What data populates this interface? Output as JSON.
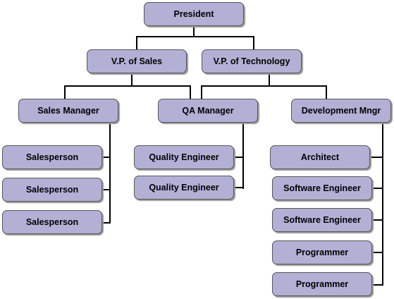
{
  "org_chart": {
    "president": "President",
    "vp_sales": "V.P. of Sales",
    "vp_technology": "V.P. of Technology",
    "sales_manager": "Sales Manager",
    "qa_manager": "QA Manager",
    "development_manager": "Development Mngr",
    "sales_team": [
      "Salesperson",
      "Salesperson",
      "Salesperson"
    ],
    "qa_team": [
      "Quality Engineer",
      "Quality Engineer"
    ],
    "dev_team": [
      "Architect",
      "Software Engineer",
      "Software Engineer",
      "Programmer",
      "Programmer"
    ]
  },
  "colors": {
    "node_fill": "#b3b0d6",
    "node_border": "#555555",
    "connector": "#000000"
  }
}
